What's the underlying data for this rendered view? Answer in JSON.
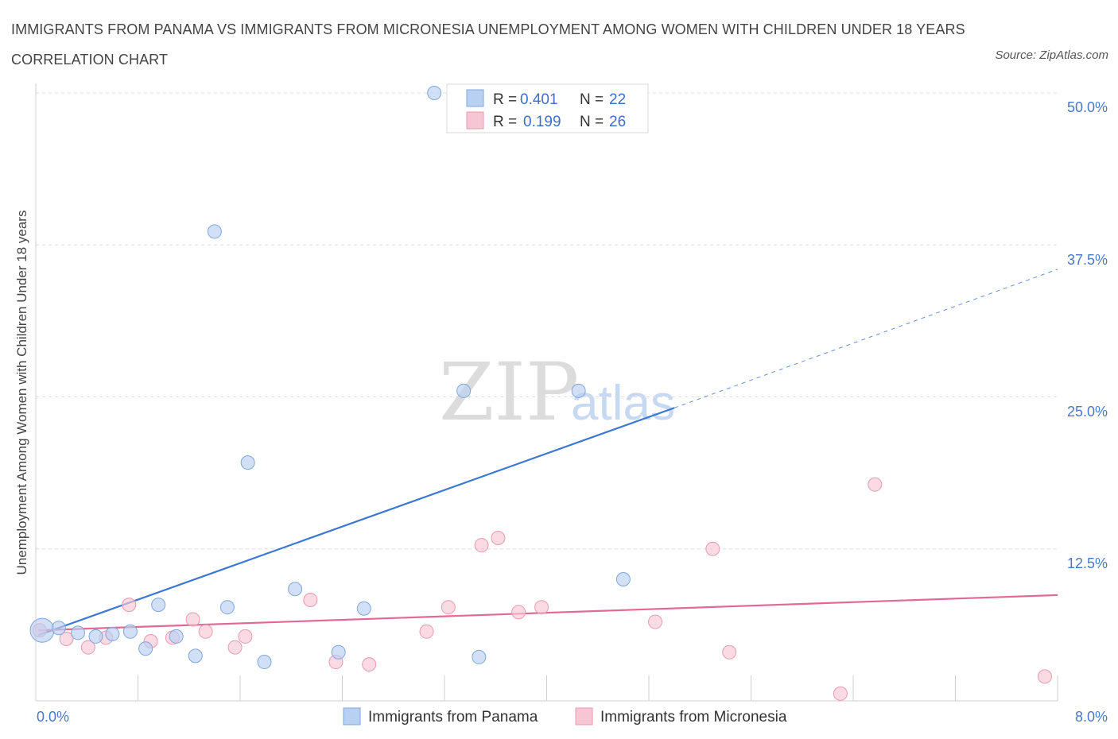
{
  "title": "IMMIGRANTS FROM PANAMA VS IMMIGRANTS FROM MICRONESIA UNEMPLOYMENT AMONG WOMEN WITH CHILDREN UNDER 18 YEARS CORRELATION CHART",
  "source": "Source: ZipAtlas.com",
  "watermark": {
    "zip": "ZIP",
    "atlas": "atlas"
  },
  "colors": {
    "panama_fill": "#b8d0f2",
    "panama_stroke": "#7fa6dc",
    "panama_line": "#3a78d4",
    "micronesia_fill": "#f7c6d4",
    "micronesia_stroke": "#e89ab1",
    "micronesia_line": "#e06a95"
  },
  "stats": [
    {
      "r_label": "R =",
      "r": "0.401",
      "n_label": "N =",
      "n": "22"
    },
    {
      "r_label": "R =",
      "r": "0.199",
      "n_label": "N =",
      "n": "26"
    }
  ],
  "chart_data": {
    "type": "scatter",
    "xlabel": "",
    "ylabel": "Unemployment Among Women with Children Under 18 years",
    "xlim": [
      0,
      8
    ],
    "ylim": [
      0,
      50
    ],
    "x_tick_labels": [
      "0.0%",
      "8.0%"
    ],
    "y_tick_labels": [
      "12.5%",
      "25.0%",
      "37.5%",
      "50.0%"
    ],
    "y_ticks": [
      12.5,
      25,
      37.5,
      50
    ],
    "grid": true,
    "legend": "bottom-center",
    "series": [
      {
        "name": "Immigrants from Panama",
        "r": 0.401,
        "n": 22,
        "points": [
          {
            "x": 0.05,
            "y": 5.8,
            "big": true
          },
          {
            "x": 0.18,
            "y": 6.0
          },
          {
            "x": 0.33,
            "y": 5.6
          },
          {
            "x": 0.47,
            "y": 5.3
          },
          {
            "x": 0.6,
            "y": 5.5
          },
          {
            "x": 0.74,
            "y": 5.7
          },
          {
            "x": 0.86,
            "y": 4.3
          },
          {
            "x": 0.96,
            "y": 7.9
          },
          {
            "x": 1.1,
            "y": 5.3
          },
          {
            "x": 1.25,
            "y": 3.7
          },
          {
            "x": 1.4,
            "y": 38.6
          },
          {
            "x": 1.5,
            "y": 7.7
          },
          {
            "x": 1.66,
            "y": 19.6
          },
          {
            "x": 1.79,
            "y": 3.2
          },
          {
            "x": 2.03,
            "y": 9.2
          },
          {
            "x": 2.37,
            "y": 4.0
          },
          {
            "x": 2.57,
            "y": 7.6
          },
          {
            "x": 3.12,
            "y": 50.0
          },
          {
            "x": 3.35,
            "y": 25.5
          },
          {
            "x": 3.47,
            "y": 3.6
          },
          {
            "x": 4.25,
            "y": 25.5
          },
          {
            "x": 4.6,
            "y": 10.0
          }
        ],
        "trend": {
          "x0": 0.02,
          "y0": 5.4,
          "x1": 5.0,
          "y1": 24.1,
          "dash_x1": 8.0,
          "dash_y1": 35.5
        }
      },
      {
        "name": "Immigrants from Micronesia",
        "r": 0.199,
        "n": 26,
        "points": [
          {
            "x": 0.03,
            "y": 5.8
          },
          {
            "x": 0.24,
            "y": 5.1
          },
          {
            "x": 0.41,
            "y": 4.4
          },
          {
            "x": 0.55,
            "y": 5.2
          },
          {
            "x": 0.73,
            "y": 7.9
          },
          {
            "x": 0.9,
            "y": 4.9
          },
          {
            "x": 1.07,
            "y": 5.2
          },
          {
            "x": 1.23,
            "y": 6.7
          },
          {
            "x": 1.33,
            "y": 5.7
          },
          {
            "x": 1.56,
            "y": 4.4
          },
          {
            "x": 1.64,
            "y": 5.3
          },
          {
            "x": 2.15,
            "y": 8.3
          },
          {
            "x": 2.35,
            "y": 3.2
          },
          {
            "x": 2.61,
            "y": 3.0
          },
          {
            "x": 3.06,
            "y": 5.7
          },
          {
            "x": 3.23,
            "y": 7.7
          },
          {
            "x": 3.49,
            "y": 12.8
          },
          {
            "x": 3.62,
            "y": 13.4
          },
          {
            "x": 3.78,
            "y": 7.3
          },
          {
            "x": 3.96,
            "y": 7.7
          },
          {
            "x": 4.85,
            "y": 6.5
          },
          {
            "x": 5.3,
            "y": 12.5
          },
          {
            "x": 5.43,
            "y": 4.0
          },
          {
            "x": 6.3,
            "y": 0.6
          },
          {
            "x": 6.57,
            "y": 17.8
          },
          {
            "x": 7.9,
            "y": 2.0
          }
        ],
        "trend": {
          "x0": 0.02,
          "y0": 5.8,
          "x1": 8.0,
          "y1": 8.7
        }
      }
    ]
  }
}
